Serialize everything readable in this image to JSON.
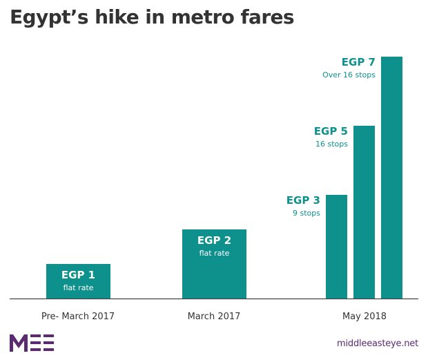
{
  "title": "Egypt’s hike in metro fares",
  "footer": {
    "logo_text": "MEE",
    "url": "middleeasteye.net"
  },
  "colors": {
    "bar": "#0e918c",
    "text": "#333333",
    "axis": "#444444",
    "brand": "#5a2b6f"
  },
  "chart_data": {
    "type": "bar",
    "categories": [
      "Pre- March 2017",
      "March 2017",
      "May 2018"
    ],
    "ylim": [
      0,
      7
    ],
    "bars": [
      {
        "category": "Pre- March 2017",
        "value": 1,
        "label": "EGP 1",
        "sublabel": "flat rate",
        "label_position": "inside"
      },
      {
        "category": "March 2017",
        "value": 2,
        "label": "EGP 2",
        "sublabel": "flat rate",
        "label_position": "inside"
      },
      {
        "category": "May 2018",
        "value": 3,
        "label": "EGP 3",
        "sublabel": "9 stops",
        "label_position": "left"
      },
      {
        "category": "May 2018",
        "value": 5,
        "label": "EGP 5",
        "sublabel": "16 stops",
        "label_position": "left"
      },
      {
        "category": "May 2018",
        "value": 7,
        "label": "EGP 7",
        "sublabel": "Over 16 stops",
        "label_position": "left"
      }
    ]
  }
}
